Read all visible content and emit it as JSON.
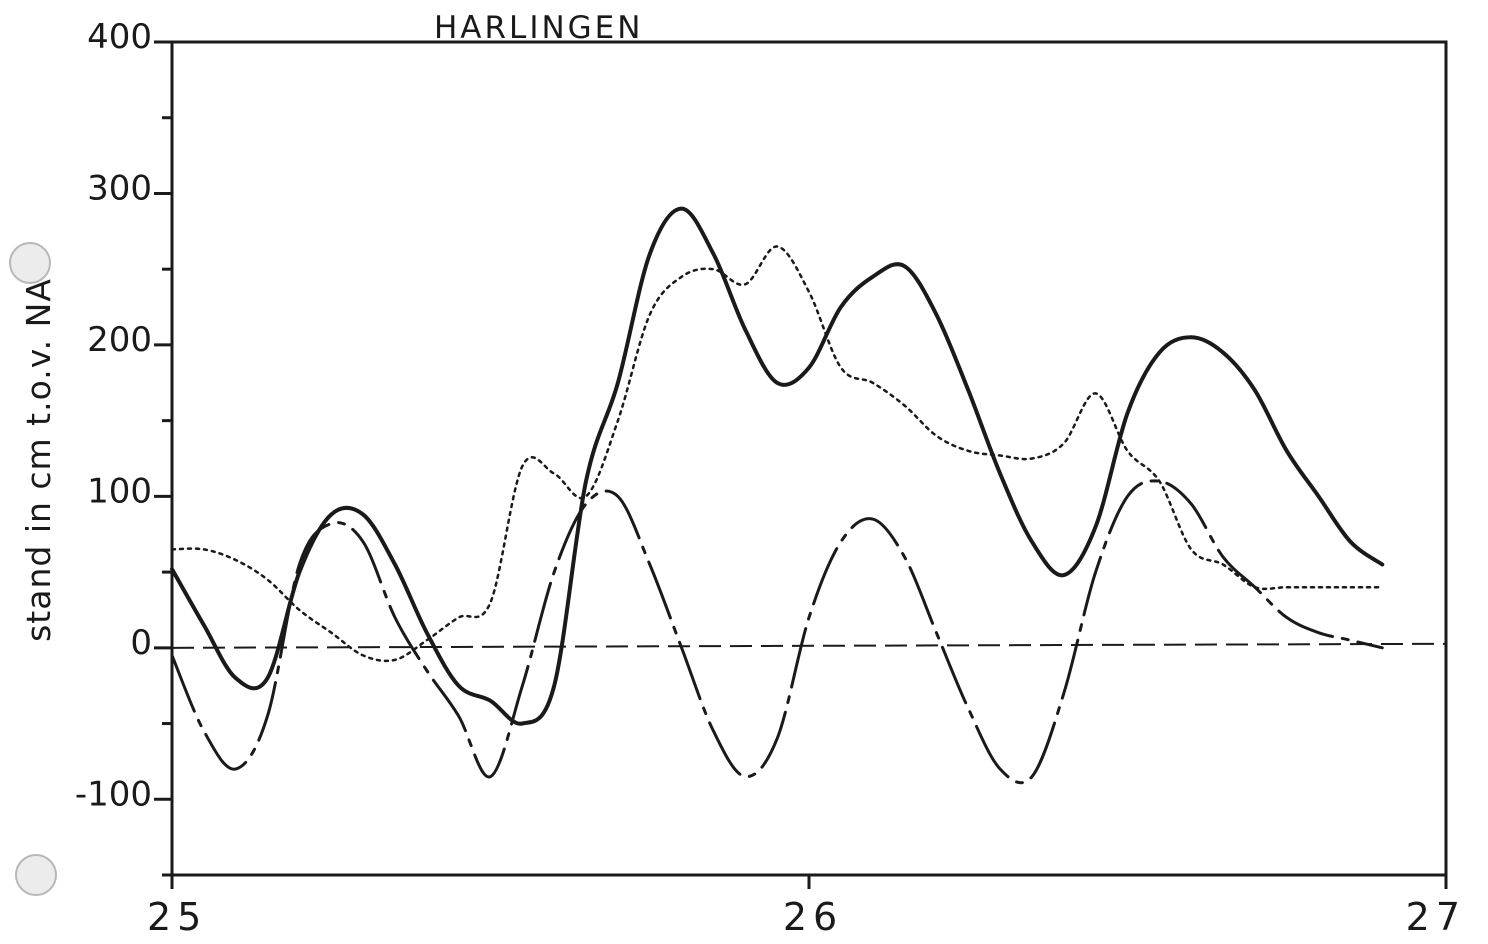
{
  "chart_data": {
    "type": "line",
    "title": "HARLINGEN",
    "xlabel": "",
    "ylabel": "stand in cm t.o.v. NA",
    "xlim": [
      25,
      27
    ],
    "ylim": [
      -150,
      400
    ],
    "xticks": [
      25,
      26,
      27
    ],
    "xtick_labels": [
      "25",
      "26",
      "27"
    ],
    "yticks": [
      -100,
      0,
      100,
      200,
      300,
      400
    ],
    "ytick_labels": [
      "-100",
      "0",
      "100",
      "200",
      "300",
      "400"
    ],
    "y_minor_ticks": [
      -150,
      -50,
      50,
      150,
      250,
      350
    ],
    "grid": false,
    "legend": "none",
    "reference_line": {
      "y": 0,
      "style": "dashed"
    },
    "series": [
      {
        "style": "solid",
        "x": [
          25.0,
          25.05,
          25.1,
          25.15,
          25.2,
          25.25,
          25.3,
          25.35,
          25.4,
          25.45,
          25.5,
          25.55,
          25.6,
          25.65,
          25.7,
          25.75,
          25.8,
          25.85,
          25.9,
          25.95,
          26.0,
          26.05,
          26.1,
          26.15,
          26.2,
          26.25,
          26.3,
          26.35,
          26.4,
          26.45,
          26.5,
          26.55,
          26.6,
          26.65,
          26.7,
          26.75,
          26.8,
          26.85,
          26.9
        ],
        "y": [
          52,
          15,
          -20,
          -20,
          50,
          88,
          88,
          55,
          10,
          -25,
          -35,
          -50,
          -25,
          110,
          175,
          260,
          290,
          260,
          210,
          175,
          185,
          225,
          245,
          252,
          220,
          170,
          115,
          70,
          48,
          80,
          155,
          195,
          205,
          195,
          170,
          130,
          100,
          70,
          55
        ]
      },
      {
        "style": "dotted",
        "x": [
          25.0,
          25.05,
          25.1,
          25.15,
          25.2,
          25.25,
          25.3,
          25.35,
          25.4,
          25.45,
          25.5,
          25.55,
          25.6,
          25.65,
          25.7,
          25.75,
          25.8,
          25.85,
          25.9,
          25.95,
          26.0,
          26.05,
          26.1,
          26.15,
          26.2,
          26.25,
          26.3,
          26.35,
          26.4,
          26.45,
          26.5,
          26.55,
          26.6,
          26.65,
          26.7,
          26.75,
          26.8,
          26.85,
          26.9
        ],
        "y": [
          65,
          65,
          58,
          45,
          25,
          10,
          -5,
          -8,
          5,
          20,
          30,
          120,
          115,
          100,
          150,
          220,
          245,
          250,
          240,
          265,
          235,
          185,
          175,
          160,
          140,
          130,
          127,
          125,
          135,
          168,
          130,
          110,
          65,
          55,
          40,
          40,
          40,
          40,
          40
        ]
      },
      {
        "style": "dash-dot",
        "x": [
          25.0,
          25.05,
          25.1,
          25.15,
          25.2,
          25.25,
          25.3,
          25.35,
          25.4,
          25.45,
          25.5,
          25.55,
          25.6,
          25.65,
          25.7,
          25.75,
          25.8,
          25.85,
          25.9,
          25.95,
          26.0,
          26.05,
          26.1,
          26.15,
          26.2,
          26.25,
          26.3,
          26.35,
          26.4,
          26.45,
          26.5,
          26.55,
          26.6,
          26.65,
          26.7,
          26.75,
          26.8,
          26.85,
          26.9
        ],
        "y": [
          -5,
          -55,
          -80,
          -45,
          55,
          82,
          70,
          20,
          -15,
          -45,
          -85,
          -25,
          50,
          95,
          100,
          55,
          0,
          -55,
          -85,
          -60,
          20,
          70,
          85,
          60,
          10,
          -40,
          -80,
          -85,
          -30,
          50,
          100,
          110,
          95,
          60,
          40,
          20,
          10,
          5,
          0
        ]
      }
    ]
  }
}
